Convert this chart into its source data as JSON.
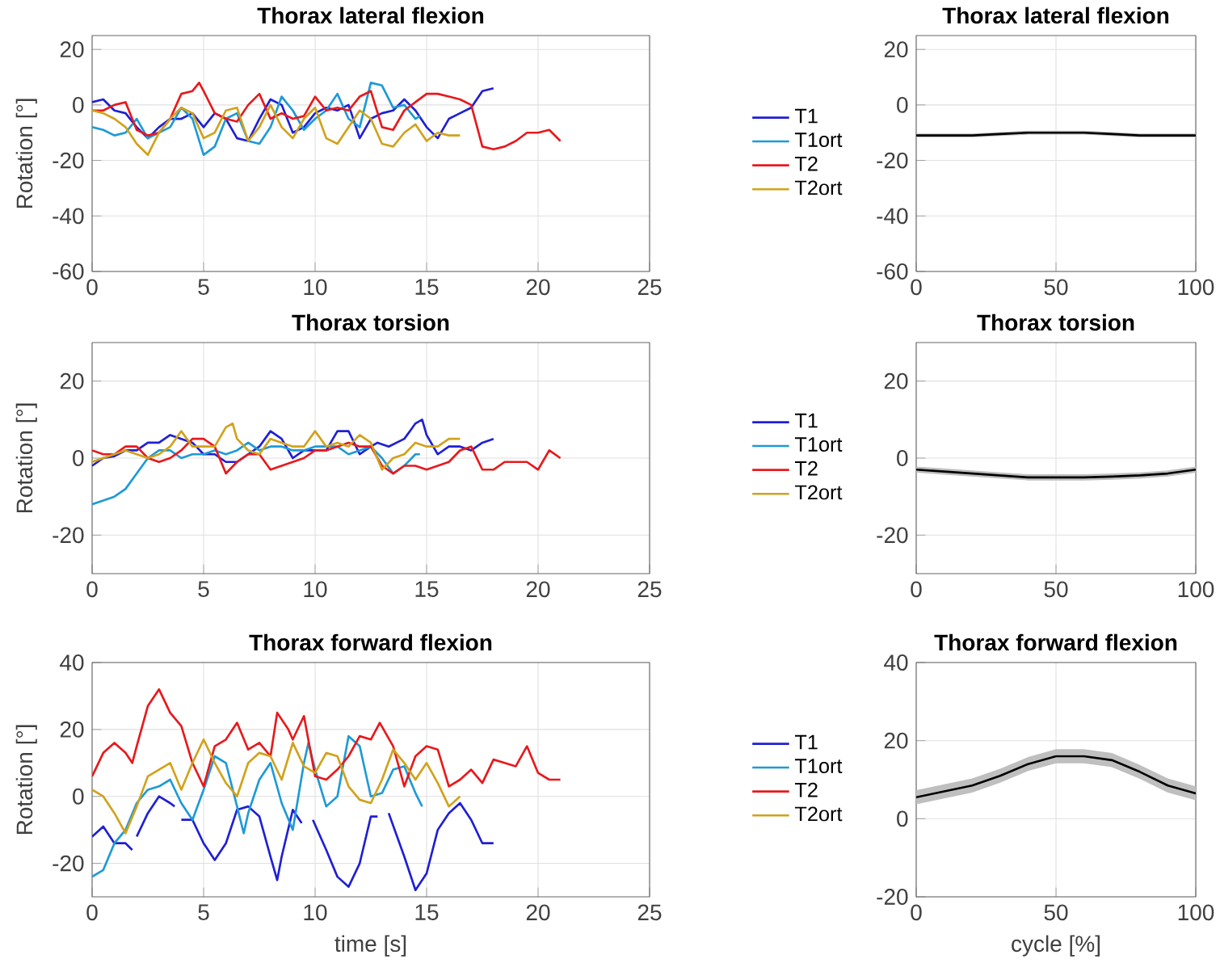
{
  "chart_data": [
    {
      "type": "line",
      "title": "Thorax lateral flexion",
      "ylabel": "Rotation [°]",
      "xlim": [
        0,
        25
      ],
      "xticks": [
        0,
        5,
        10,
        15,
        20,
        25
      ],
      "ylim": [
        -60,
        25
      ],
      "yticks": [
        -60,
        -40,
        -20,
        0,
        20
      ],
      "grid": true,
      "legend": "right",
      "series": [
        {
          "name": "T1",
          "color": "#1f1fd6",
          "x": [
            0,
            0.5,
            1,
            1.5,
            2,
            2.5,
            3,
            3.5,
            4,
            4.5,
            5,
            5.5,
            6,
            6.5,
            7,
            7.5,
            8,
            8.5,
            9,
            9.5,
            10,
            10.5,
            11,
            11.5,
            12,
            12.5,
            13,
            13.5,
            14,
            14.5,
            15,
            15.5,
            16,
            16.5,
            17,
            17.5,
            18
          ],
          "values": [
            1,
            2,
            -2,
            -3,
            -8,
            -12,
            -8,
            -5,
            -5,
            -3,
            -8,
            -3,
            -5,
            -12,
            -13,
            -5,
            2,
            0,
            -10,
            -8,
            -3,
            -1,
            -2,
            0,
            -12,
            -5,
            -3,
            -2,
            2,
            -2,
            -8,
            -12,
            -5,
            -3,
            -1,
            5,
            6
          ]
        },
        {
          "name": "T1ort",
          "color": "#1e9ad6",
          "x": [
            0,
            0.5,
            1,
            1.5,
            2,
            2.5,
            3,
            3.5,
            4,
            4.5,
            5,
            5.5,
            6,
            6.5,
            7,
            7.5,
            8,
            8.5,
            9,
            9.5,
            10,
            10.5,
            11,
            11.5,
            12,
            12.5,
            13,
            13.5,
            14,
            14.5,
            14.7
          ],
          "values": [
            -8,
            -9,
            -11,
            -10,
            -5,
            -12,
            -10,
            -8,
            -1,
            -5,
            -18,
            -15,
            -5,
            -3,
            -13,
            -14,
            -8,
            3,
            -2,
            -9,
            -5,
            -2,
            4,
            -5,
            -8,
            8,
            7,
            -1,
            0,
            -5,
            -4
          ]
        },
        {
          "name": "T2",
          "color": "#e8191c",
          "x": [
            0,
            0.5,
            1,
            1.5,
            2,
            2.5,
            3,
            3.5,
            4,
            4.5,
            4.8,
            5,
            5.5,
            6,
            6.5,
            7,
            7.5,
            8,
            8.5,
            9,
            9.5,
            10,
            10.5,
            11,
            11.5,
            12,
            12.5,
            13,
            13.5,
            14,
            14.5,
            15,
            15.5,
            16,
            16.5,
            17,
            17.5,
            18,
            18.5,
            19,
            19.5,
            20,
            20.5,
            21
          ],
          "values": [
            -2,
            -2,
            0,
            1,
            -9,
            -11,
            -10,
            -5,
            4,
            5,
            8,
            5,
            -3,
            -5,
            -6,
            0,
            4,
            -5,
            -3,
            -5,
            -4,
            3,
            -2,
            -1,
            -2,
            3,
            5,
            -8,
            -9,
            -2,
            1,
            4,
            4,
            3,
            2,
            0,
            -15,
            -16,
            -15,
            -13,
            -10,
            -10,
            -9,
            -13
          ]
        },
        {
          "name": "T2ort",
          "color": "#d1a21c",
          "x": [
            0,
            0.5,
            1,
            1.5,
            2,
            2.5,
            3,
            3.5,
            4,
            4.5,
            5,
            5.5,
            6,
            6.5,
            7,
            7.5,
            8,
            8.5,
            9,
            9.5,
            10,
            10.5,
            11,
            11.5,
            12,
            12.5,
            13,
            13.5,
            14,
            14.5,
            15,
            15.5,
            16,
            16.5
          ],
          "values": [
            -2,
            -3,
            -5,
            -8,
            -14,
            -18,
            -10,
            -5,
            -1,
            -3,
            -12,
            -10,
            -2,
            -1,
            -13,
            -8,
            0,
            -8,
            -12,
            -5,
            -1,
            -12,
            -14,
            -8,
            -2,
            -5,
            -14,
            -15,
            -10,
            -7,
            -13,
            -10,
            -11,
            -11
          ]
        }
      ]
    },
    {
      "type": "line",
      "title": "Thorax lateral flexion",
      "xlim": [
        0,
        100
      ],
      "xticks": [
        0,
        50,
        100
      ],
      "ylim": [
        -60,
        25
      ],
      "yticks": [
        -60,
        -40,
        -20,
        0,
        20
      ],
      "grid": true,
      "x": [
        0,
        10,
        20,
        30,
        40,
        50,
        60,
        70,
        80,
        90,
        100
      ],
      "series": [
        {
          "color": "#000000",
          "values": [
            -11,
            -11,
            -11,
            -10.5,
            -10,
            -10,
            -10,
            -10.5,
            -11,
            -11,
            -11
          ],
          "lower": [
            -11.7,
            -11.7,
            -11.7,
            -11.2,
            -10.7,
            -10.7,
            -10.7,
            -11.2,
            -11.7,
            -11.7,
            -11.7
          ],
          "upper": [
            -10.3,
            -10.3,
            -10.3,
            -9.8,
            -9.3,
            -9.3,
            -9.3,
            -9.8,
            -10.3,
            -10.3,
            -10.3
          ]
        }
      ]
    },
    {
      "type": "line",
      "title": "Thorax torsion",
      "ylabel": "Rotation [°]",
      "xlim": [
        0,
        25
      ],
      "xticks": [
        0,
        5,
        10,
        15,
        20,
        25
      ],
      "ylim": [
        -30,
        30
      ],
      "yticks": [
        -20,
        0,
        20
      ],
      "grid": true,
      "legend": "right",
      "series": [
        {
          "name": "T1",
          "color": "#1f1fd6",
          "x": [
            0,
            0.5,
            1,
            1.5,
            2,
            2.5,
            3,
            3.5,
            4,
            4.5,
            5,
            5.5,
            6,
            6.5,
            7,
            7.5,
            8,
            8.5,
            9,
            9.5,
            10,
            10.5,
            11,
            11.5,
            12,
            12.5,
            12.8,
            13.3,
            14,
            14.5,
            14.8,
            15,
            15.5,
            16,
            16.5,
            17,
            17.5,
            18
          ],
          "values": [
            -2,
            0,
            0.5,
            2,
            2,
            4,
            4,
            6,
            5,
            4,
            1,
            1,
            -1,
            -1,
            1,
            3,
            7,
            5,
            0,
            2,
            2,
            2,
            7,
            7,
            1,
            3,
            4,
            3,
            5,
            9,
            10,
            6,
            1,
            3,
            3,
            2,
            4,
            5
          ]
        },
        {
          "name": "T1ort",
          "color": "#1e9ad6",
          "x": [
            0,
            0.5,
            1,
            1.5,
            2,
            2.5,
            3,
            3.5,
            4,
            4.5,
            5,
            5.5,
            6,
            6.5,
            7,
            7.5,
            8,
            8.5,
            9,
            9.5,
            10,
            10.5,
            11,
            11.5,
            12,
            12.5,
            13,
            13.5,
            14,
            14.5,
            14.7
          ],
          "values": [
            -12,
            -11,
            -10,
            -8,
            -4,
            0,
            2,
            2,
            0,
            1,
            1,
            2,
            1,
            2,
            4,
            2,
            3,
            3,
            2,
            2,
            3,
            3,
            3,
            1,
            2,
            3,
            0,
            -4,
            -2,
            1,
            1
          ]
        },
        {
          "name": "T2",
          "color": "#e8191c",
          "x": [
            0,
            0.5,
            1,
            1.5,
            2,
            2.5,
            3,
            3.5,
            4,
            4.5,
            5,
            5.5,
            6,
            6.5,
            7,
            7.5,
            8,
            8.5,
            9,
            9.5,
            10,
            10.5,
            11,
            11.5,
            12,
            12.5,
            13,
            13.5,
            14,
            14.5,
            15,
            15.5,
            16,
            16.5,
            17,
            17.5,
            18,
            18.5,
            19,
            19.5,
            20,
            20.5,
            21
          ],
          "values": [
            2,
            1,
            1,
            3,
            3,
            0,
            -1,
            0,
            2,
            5,
            5,
            3,
            -4,
            -1,
            1,
            1,
            -3,
            -2,
            -1,
            0,
            2,
            2,
            3,
            4,
            3,
            3,
            -2,
            -4,
            -2,
            -2,
            -3,
            -2,
            -1,
            2,
            3,
            -3,
            -3,
            -1,
            -1,
            -1,
            -3,
            2,
            0
          ]
        },
        {
          "name": "T2ort",
          "color": "#d1a21c",
          "x": [
            0,
            0.5,
            1,
            1.5,
            2,
            2.5,
            3,
            3.5,
            4,
            4.5,
            5,
            5.5,
            6,
            6.3,
            6.5,
            7,
            7.5,
            8,
            8.5,
            9,
            9.5,
            10,
            10.5,
            11,
            11.5,
            12,
            12.5,
            13,
            13.5,
            14,
            14.5,
            15,
            15.5,
            16,
            16.5
          ],
          "values": [
            -1,
            0,
            1,
            2,
            1,
            0,
            1,
            3,
            7,
            3,
            3,
            3,
            8,
            9,
            5,
            2,
            1,
            5,
            4,
            3,
            3,
            7,
            3,
            4,
            3,
            6,
            4,
            -3,
            0,
            1,
            4,
            3,
            3,
            5,
            5
          ]
        }
      ]
    },
    {
      "type": "line",
      "title": "Thorax torsion",
      "xlim": [
        0,
        100
      ],
      "xticks": [
        0,
        50,
        100
      ],
      "ylim": [
        -30,
        30
      ],
      "yticks": [
        -20,
        0,
        20
      ],
      "grid": true,
      "x": [
        0,
        10,
        20,
        30,
        40,
        50,
        60,
        70,
        80,
        90,
        100
      ],
      "series": [
        {
          "color": "#000000",
          "values": [
            -3,
            -3.5,
            -4,
            -4.5,
            -5,
            -5,
            -5,
            -4.8,
            -4.5,
            -4,
            -3
          ],
          "lower": [
            -3.8,
            -4.3,
            -4.8,
            -5.3,
            -5.8,
            -5.8,
            -5.8,
            -5.6,
            -5.3,
            -4.8,
            -3.8
          ],
          "upper": [
            -2.2,
            -2.7,
            -3.2,
            -3.7,
            -4.2,
            -4.2,
            -4.2,
            -4,
            -3.7,
            -3.2,
            -2.2
          ]
        }
      ]
    },
    {
      "type": "line",
      "title": "Thorax forward flexion",
      "xlabel": "time [s]",
      "ylabel": "Rotation [°]",
      "xlim": [
        0,
        25
      ],
      "xticks": [
        0,
        5,
        10,
        15,
        20,
        25
      ],
      "ylim": [
        -30,
        40
      ],
      "yticks": [
        -20,
        0,
        20,
        40
      ],
      "grid": true,
      "legend": "right",
      "series": [
        {
          "name": "T1",
          "color": "#1f1fd6",
          "x": [
            0,
            0.5,
            1,
            1.5,
            1.8,
            1.9,
            2,
            2.5,
            3,
            3.5,
            3.7,
            3.85,
            4,
            4.5,
            5,
            5.5,
            6,
            6.5,
            7,
            7.5,
            8,
            8.3,
            8.5,
            9,
            9.4,
            9.65,
            9.9,
            10.5,
            11,
            11.5,
            12,
            12.5,
            12.8,
            13.05,
            13.3,
            14,
            14.5,
            15,
            15.5,
            16,
            16.5,
            17,
            17.5,
            18
          ],
          "values": [
            -12,
            -9,
            -14,
            -14,
            -16,
            null,
            -12,
            -5,
            0,
            -2,
            -3,
            null,
            -7,
            -7,
            -14,
            -19,
            -14,
            -4,
            -3,
            -6,
            -18,
            -25,
            -18,
            -4,
            -8,
            null,
            -7,
            -16,
            -24,
            -27,
            -20,
            -6,
            -6,
            null,
            -5,
            -18,
            -28,
            -23,
            -10,
            -5,
            -2,
            -7,
            -14,
            -14
          ]
        },
        {
          "name": "T1ort",
          "color": "#1e9ad6",
          "x": [
            0,
            0.5,
            1,
            1.5,
            2,
            2.5,
            3,
            3.5,
            4,
            4.5,
            5,
            5.5,
            6,
            6.5,
            6.8,
            7,
            7.5,
            8,
            8.5,
            9,
            9.5,
            9.7,
            10,
            10.5,
            11,
            11.5,
            12,
            12.5,
            13,
            13.5,
            14,
            14.5,
            14.8
          ],
          "values": [
            -24,
            -22,
            -14,
            -10,
            -2,
            2,
            3,
            5,
            -2,
            -7,
            2,
            12,
            10,
            -3,
            -11,
            -5,
            5,
            10,
            -2,
            -10,
            10,
            16,
            8,
            -3,
            0,
            18,
            15,
            0,
            1,
            8,
            9,
            1,
            -3
          ]
        },
        {
          "name": "T2",
          "color": "#e8191c",
          "x": [
            0,
            0.5,
            1,
            1.5,
            1.8,
            2,
            2.5,
            3,
            3.5,
            4,
            4.5,
            5,
            5.5,
            6,
            6.5,
            7,
            7.5,
            8,
            8.3,
            8.8,
            9,
            9.5,
            10,
            10.5,
            11,
            11.5,
            12,
            12.5,
            12.9,
            13.5,
            14,
            14.5,
            15,
            15.5,
            16,
            16.5,
            17,
            17.5,
            18,
            18.5,
            19,
            19.5,
            20,
            20.5,
            21
          ],
          "values": [
            6,
            13,
            16,
            13,
            10,
            15,
            27,
            32,
            25,
            21,
            10,
            3,
            15,
            17,
            22,
            14,
            16,
            12,
            25,
            20,
            17,
            24,
            6,
            5,
            8,
            12,
            18,
            17,
            22,
            15,
            3,
            12,
            15,
            14,
            3,
            5,
            8,
            4,
            11,
            10,
            9,
            15,
            7,
            5,
            5
          ]
        },
        {
          "name": "T2ort",
          "color": "#d1a21c",
          "x": [
            0,
            0.5,
            1,
            1.5,
            2,
            2.5,
            3,
            3.5,
            4,
            4.5,
            5,
            5.5,
            6,
            6.5,
            7,
            7.5,
            8,
            8.5,
            9,
            9.5,
            10,
            10.5,
            11,
            11.5,
            12,
            12.5,
            13,
            13.5,
            14,
            14.5,
            15,
            15.5,
            16,
            16.5
          ],
          "values": [
            2,
            0,
            -5,
            -11,
            -3,
            6,
            8,
            10,
            2,
            10,
            17,
            10,
            4,
            0,
            10,
            13,
            12,
            5,
            16,
            9,
            7,
            13,
            12,
            3,
            -1,
            -2,
            5,
            14,
            10,
            5,
            10,
            4,
            -3,
            0
          ]
        }
      ]
    },
    {
      "type": "line",
      "title": "Thorax forward flexion",
      "xlabel": "cycle [%]",
      "xlim": [
        0,
        100
      ],
      "xticks": [
        0,
        50,
        100
      ],
      "ylim": [
        -20,
        40
      ],
      "yticks": [
        -20,
        0,
        20,
        40
      ],
      "grid": true,
      "x": [
        0,
        10,
        20,
        30,
        40,
        50,
        60,
        70,
        80,
        90,
        100
      ],
      "series": [
        {
          "color": "#000000",
          "values": [
            5.5,
            7,
            8.5,
            11,
            14,
            16,
            16,
            15,
            12,
            8.5,
            6.5
          ],
          "lower": [
            3.7,
            5.2,
            6.7,
            9.2,
            12.2,
            14.2,
            14.2,
            13.2,
            10.2,
            6.7,
            4.7
          ],
          "upper": [
            7.3,
            8.8,
            10.3,
            12.8,
            15.8,
            17.8,
            17.8,
            16.8,
            13.8,
            10.3,
            8.3
          ]
        }
      ]
    }
  ]
}
